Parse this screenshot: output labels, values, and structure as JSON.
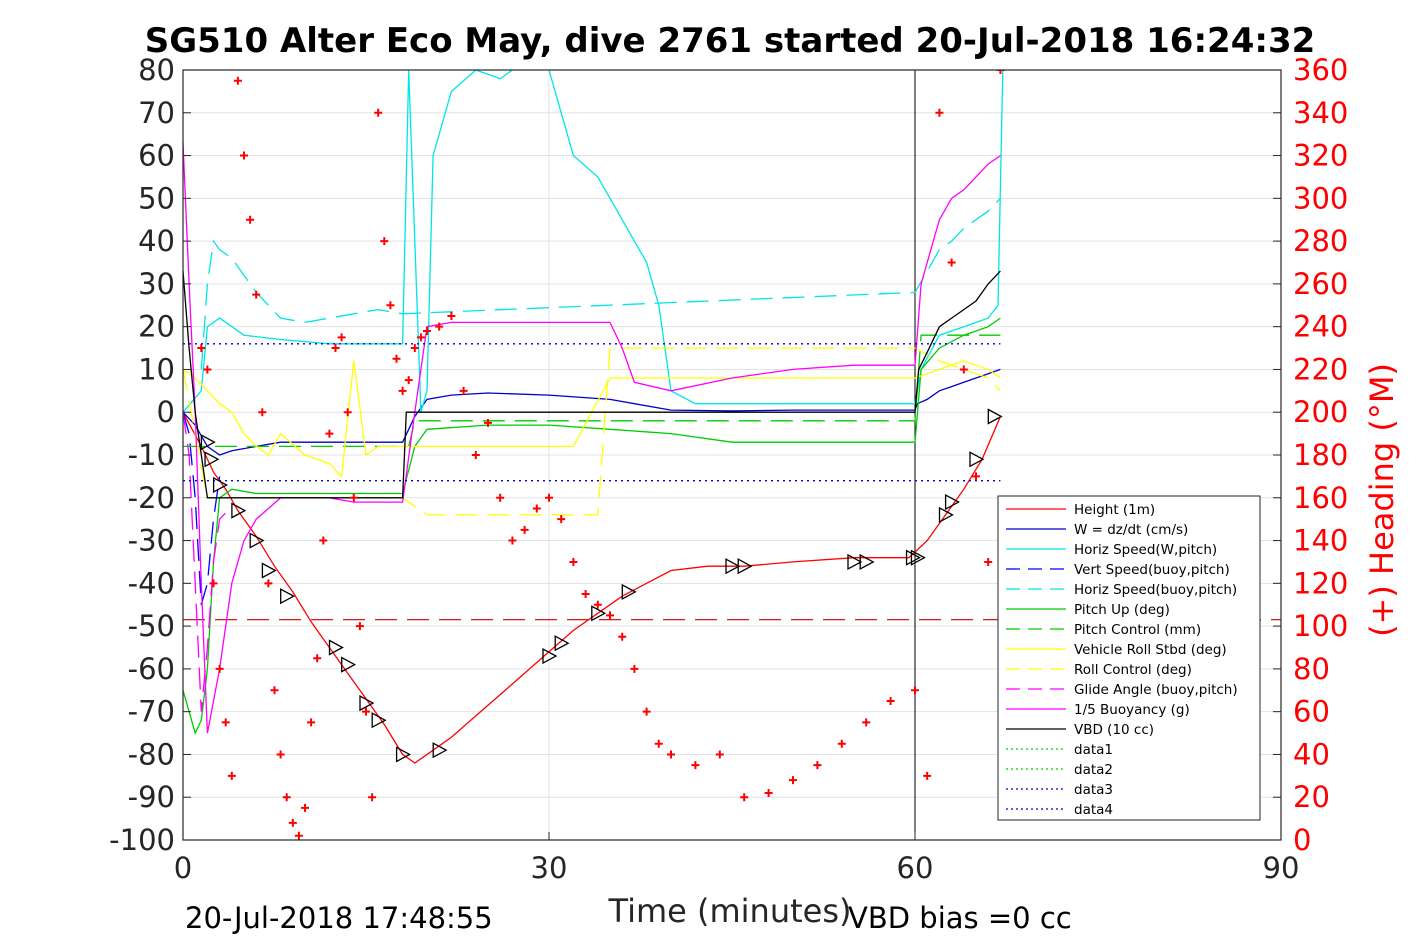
{
  "chart_data": {
    "type": "line",
    "title": "SG510 Alter Eco May, dive 2761 started 20-Jul-2018 16:24:32",
    "xlabel": "Time (minutes)",
    "ylabel": "",
    "y2label": "(+) Heading (°M)",
    "xlim": [
      0,
      90
    ],
    "ylim": [
      -100,
      80
    ],
    "y2lim": [
      0,
      360
    ],
    "xticks": [
      "0",
      "30",
      "60",
      "90"
    ],
    "yticks": [
      "80",
      "70",
      "60",
      "50",
      "40",
      "30",
      "20",
      "10",
      "0",
      "-10",
      "-20",
      "-30",
      "-40",
      "-50",
      "-60",
      "-70",
      "-80",
      "-90",
      "-100"
    ],
    "y2ticks": [
      "360",
      "340",
      "320",
      "300",
      "280",
      "260",
      "240",
      "220",
      "200",
      "180",
      "160",
      "140",
      "120",
      "100",
      "80",
      "60",
      "40",
      "20",
      "0"
    ],
    "grid": true,
    "legend_position": "bottom-right",
    "footer_left": "20-Jul-2018 17:48:55",
    "footer_right": "VBD bias =0 cc",
    "series": [
      {
        "name": "Height (1m)",
        "color": "#ff0000",
        "style": "solid",
        "x": [
          0,
          1.5,
          2.5,
          3.5,
          4.5,
          6,
          7.5,
          9,
          10.5,
          12,
          13.5,
          15,
          16.5,
          18,
          19,
          20.5,
          22,
          24,
          26,
          28,
          30,
          32,
          34,
          36,
          38,
          40,
          43,
          46,
          50,
          55,
          59.5,
          61,
          62.5,
          64,
          65.5,
          67
        ],
        "y": [
          0,
          -8,
          -14,
          -18,
          -23,
          -29,
          -36,
          -42,
          -49,
          -55,
          -61,
          -67,
          -73,
          -80,
          -82,
          -79,
          -76,
          -71,
          -66,
          -61,
          -56,
          -51,
          -47,
          -43,
          -40,
          -37,
          -36,
          -36,
          -35,
          -34,
          -34,
          -30,
          -24,
          -18,
          -11,
          -1
        ]
      },
      {
        "name": "W = dz/dt (cm/s)",
        "color": "#0000cc",
        "style": "solid",
        "x": [
          0,
          1,
          2,
          3,
          4,
          6,
          8,
          10,
          12,
          14,
          16,
          18,
          19,
          20,
          22,
          25,
          30,
          35,
          40,
          45,
          50,
          55,
          60,
          60.2,
          61,
          62,
          63,
          64,
          65,
          66,
          67
        ],
        "y": [
          0,
          -3,
          -8,
          -10,
          -9,
          -8,
          -7,
          -7,
          -7,
          -7,
          -7,
          -7,
          -1,
          3,
          4,
          4.5,
          4,
          3,
          0.5,
          0.3,
          0.5,
          0.5,
          0.5,
          2,
          3,
          5,
          6,
          7,
          8,
          9,
          10
        ]
      },
      {
        "name": "Horiz Speed(W,pitch)",
        "color": "#00e5e5",
        "style": "solid",
        "x": [
          0,
          1.5,
          2,
          3,
          5,
          8,
          12,
          16,
          18,
          18.5,
          19.5,
          20,
          20.5,
          22,
          24,
          26,
          28,
          30,
          32,
          34,
          36,
          38,
          39,
          40,
          42,
          45,
          50,
          55,
          60,
          60.5,
          62,
          64,
          66,
          66.8,
          67.2
        ],
        "y": [
          0,
          5,
          20,
          22,
          18,
          17,
          16,
          16,
          16,
          80,
          0,
          5,
          60,
          75,
          80,
          78,
          82,
          80,
          60,
          55,
          45,
          35,
          25,
          5,
          2,
          2,
          2,
          2,
          2,
          10,
          18,
          20,
          22,
          25,
          80
        ]
      },
      {
        "name": "Vert Speed(buoy,pitch)",
        "color": "#0000ff",
        "style": "dashed",
        "x": [
          0,
          0.5,
          1,
          1.5,
          2,
          2.5,
          3
        ],
        "y": [
          0,
          -5,
          -20,
          -45,
          -40,
          -25,
          -15
        ]
      },
      {
        "name": "Horiz Speed(buoy,pitch)",
        "color": "#00e5e5",
        "style": "dashed",
        "x": [
          1.5,
          2,
          2.5,
          3,
          4,
          6,
          8,
          10,
          12,
          14,
          16,
          18,
          60,
          61,
          62,
          63,
          64,
          65,
          66,
          67
        ],
        "y": [
          10,
          30,
          40,
          38,
          36,
          28,
          22,
          21,
          22,
          23,
          24,
          23,
          28,
          33,
          38,
          40,
          43,
          45,
          47,
          50
        ]
      },
      {
        "name": "Pitch Up (deg)",
        "color": "#00cc00",
        "style": "solid",
        "x": [
          0,
          0.5,
          1,
          1.5,
          2,
          2.5,
          3,
          4,
          6,
          8,
          10,
          12,
          14,
          16,
          18,
          19,
          20,
          25,
          30,
          35,
          40,
          45,
          50,
          55,
          60,
          60.5,
          62,
          64,
          66,
          67
        ],
        "y": [
          -65,
          -70,
          -75,
          -72,
          -60,
          -35,
          -20,
          -18,
          -19,
          -19,
          -19,
          -19,
          -19,
          -19,
          -19,
          -8,
          -4,
          -3,
          -3,
          -4,
          -5,
          -7,
          -7,
          -7,
          -7,
          10,
          15,
          18,
          20,
          22
        ]
      },
      {
        "name": "Pitch Control (mm)",
        "color": "#00cc00",
        "style": "dashed",
        "x": [
          0,
          1.5,
          2,
          18,
          18.5,
          19,
          60,
          60.5,
          67
        ],
        "y": [
          -8,
          -8,
          -8,
          -8,
          -8,
          -2,
          -2,
          18,
          18
        ]
      },
      {
        "name": "Vehicle Roll Stbd (deg)",
        "color": "#ffff00",
        "style": "solid",
        "x": [
          0,
          1,
          2,
          3,
          4,
          5,
          6,
          7,
          8,
          10,
          12,
          13,
          14,
          15,
          16,
          18,
          20,
          22,
          25,
          28,
          30,
          32,
          35,
          37,
          40,
          45,
          50,
          55,
          60,
          62,
          64,
          66,
          67
        ],
        "y": [
          10,
          8,
          5,
          2,
          0,
          -5,
          -8,
          -10,
          -5,
          -10,
          -12,
          -15,
          12,
          -10,
          -8,
          -8,
          -8,
          -8,
          -8,
          -8,
          -8,
          -8,
          8,
          8,
          8,
          8,
          8,
          8,
          8,
          10,
          12,
          10,
          8
        ]
      },
      {
        "name": "Roll Control (deg)",
        "color": "#ffff00",
        "style": "dashed",
        "x": [
          0,
          2,
          4,
          6,
          8,
          10,
          12,
          14,
          16,
          18,
          20,
          25,
          30,
          34,
          35,
          40,
          45,
          50,
          55,
          60,
          62,
          64,
          66,
          67
        ],
        "y": [
          10,
          -20,
          -20,
          -20,
          -20,
          -20,
          -20,
          -20,
          -20,
          -20,
          -24,
          -24,
          -24,
          -24,
          15,
          15,
          15,
          15,
          15,
          15,
          12,
          10,
          8,
          5
        ]
      },
      {
        "name": "Glide Angle (buoy,pitch)",
        "color": "#ff00ff",
        "style": "dashed",
        "x": [
          0,
          0.5,
          1,
          1.5,
          2,
          2.5,
          3,
          4
        ],
        "y": [
          0,
          -10,
          -40,
          -70,
          -55,
          -35,
          -25,
          -22
        ]
      },
      {
        "name": "1/5 Buoyancy (g)",
        "color": "#ff00ff",
        "style": "solid",
        "x": [
          0,
          0.5,
          1,
          1.5,
          2,
          3,
          4,
          5,
          6,
          8,
          10,
          12,
          14,
          16,
          18,
          19,
          20,
          22,
          25,
          30,
          35,
          36,
          37,
          40,
          45,
          50,
          55,
          60,
          60.5,
          62,
          63,
          64,
          65,
          66,
          67
        ],
        "y": [
          63,
          30,
          0,
          -40,
          -75,
          -60,
          -40,
          -30,
          -25,
          -20,
          -20,
          -20,
          -21,
          -21,
          -21,
          0,
          20,
          21,
          21,
          21,
          21,
          15,
          7,
          5,
          8,
          10,
          11,
          11,
          30,
          45,
          50,
          52,
          55,
          58,
          60
        ]
      },
      {
        "name": "VBD (10 cc)",
        "color": "#000000",
        "style": "solid",
        "x": [
          0,
          0.5,
          1,
          1.5,
          2,
          3,
          5,
          10,
          15,
          18,
          18.3,
          25,
          30,
          40,
          50,
          60,
          60.3,
          61,
          62,
          63,
          64,
          65,
          66,
          67
        ],
        "y": [
          33,
          15,
          0,
          -10,
          -20,
          -20,
          -20,
          -20,
          -20,
          -20,
          0,
          0,
          0,
          0,
          0,
          0,
          10,
          14,
          20,
          22,
          24,
          26,
          30,
          33
        ]
      },
      {
        "name": "data1",
        "color": "#00cc00",
        "style": "dotted",
        "x": [],
        "y": []
      },
      {
        "name": "data2",
        "color": "#00cc00",
        "style": "dotted",
        "x": [],
        "y": []
      },
      {
        "name": "data3",
        "color": "#0000cc",
        "style": "dotted",
        "x": [
          0,
          67
        ],
        "y": [
          16,
          16
        ]
      },
      {
        "name": "data4",
        "color": "#0000cc",
        "style": "dotted",
        "x": [
          0,
          67
        ],
        "y": [
          -16,
          -16
        ]
      }
    ],
    "reference_lines": [
      {
        "axis": "y",
        "value": -48.5,
        "color": "#cc0000",
        "style": "dashed"
      },
      {
        "axis": "x",
        "value": 60,
        "color": "#000000",
        "style": "solid"
      }
    ],
    "heading_points": {
      "x": [
        1.5,
        2,
        2.5,
        3,
        3.5,
        4,
        4.5,
        5,
        5.5,
        6,
        6.5,
        7,
        7.5,
        8,
        8.5,
        9,
        9.5,
        10,
        10.5,
        11,
        11.5,
        12,
        12.5,
        13,
        13.5,
        14,
        14.5,
        15,
        15.5,
        16,
        16.5,
        17,
        17.5,
        18,
        18.5,
        19,
        19.5,
        20,
        21,
        22,
        23,
        24,
        25,
        26,
        27,
        28,
        29,
        30,
        31,
        32,
        33,
        34,
        35,
        36,
        37,
        38,
        39,
        40,
        42,
        44,
        46,
        48,
        50,
        52,
        54,
        56,
        58,
        60,
        61,
        62,
        63,
        64,
        65,
        66,
        67
      ],
      "y": [
        230,
        220,
        120,
        80,
        55,
        30,
        355,
        320,
        290,
        255,
        200,
        120,
        70,
        40,
        20,
        8,
        2,
        15,
        55,
        85,
        140,
        190,
        230,
        235,
        200,
        160,
        100,
        60,
        20,
        340,
        280,
        250,
        225,
        210,
        215,
        230,
        235,
        238,
        240,
        245,
        210,
        180,
        195,
        160,
        140,
        145,
        155,
        160,
        150,
        130,
        115,
        110,
        105,
        95,
        80,
        60,
        45,
        40,
        35,
        40,
        20,
        22,
        28,
        35,
        45,
        55,
        65,
        70,
        30,
        340,
        270,
        220,
        170,
        130,
        360
      ]
    },
    "markers": {
      "x": [
        2,
        2.3,
        3,
        4.5,
        6,
        7,
        8.5,
        12.5,
        13.5,
        15,
        16,
        18,
        21,
        30,
        31,
        34,
        36.5,
        45,
        46,
        55,
        56,
        59.8,
        60.2,
        62.5,
        63,
        65,
        66.5
      ],
      "y": [
        -7,
        -11,
        -17,
        -23,
        -30,
        -37,
        -43,
        -55,
        -59,
        -68,
        -72,
        -80,
        -79,
        -57,
        -54,
        -47,
        -42,
        -36,
        -36,
        -35,
        -35,
        -34,
        -34,
        -24,
        -21,
        -11,
        -1
      ]
    }
  }
}
